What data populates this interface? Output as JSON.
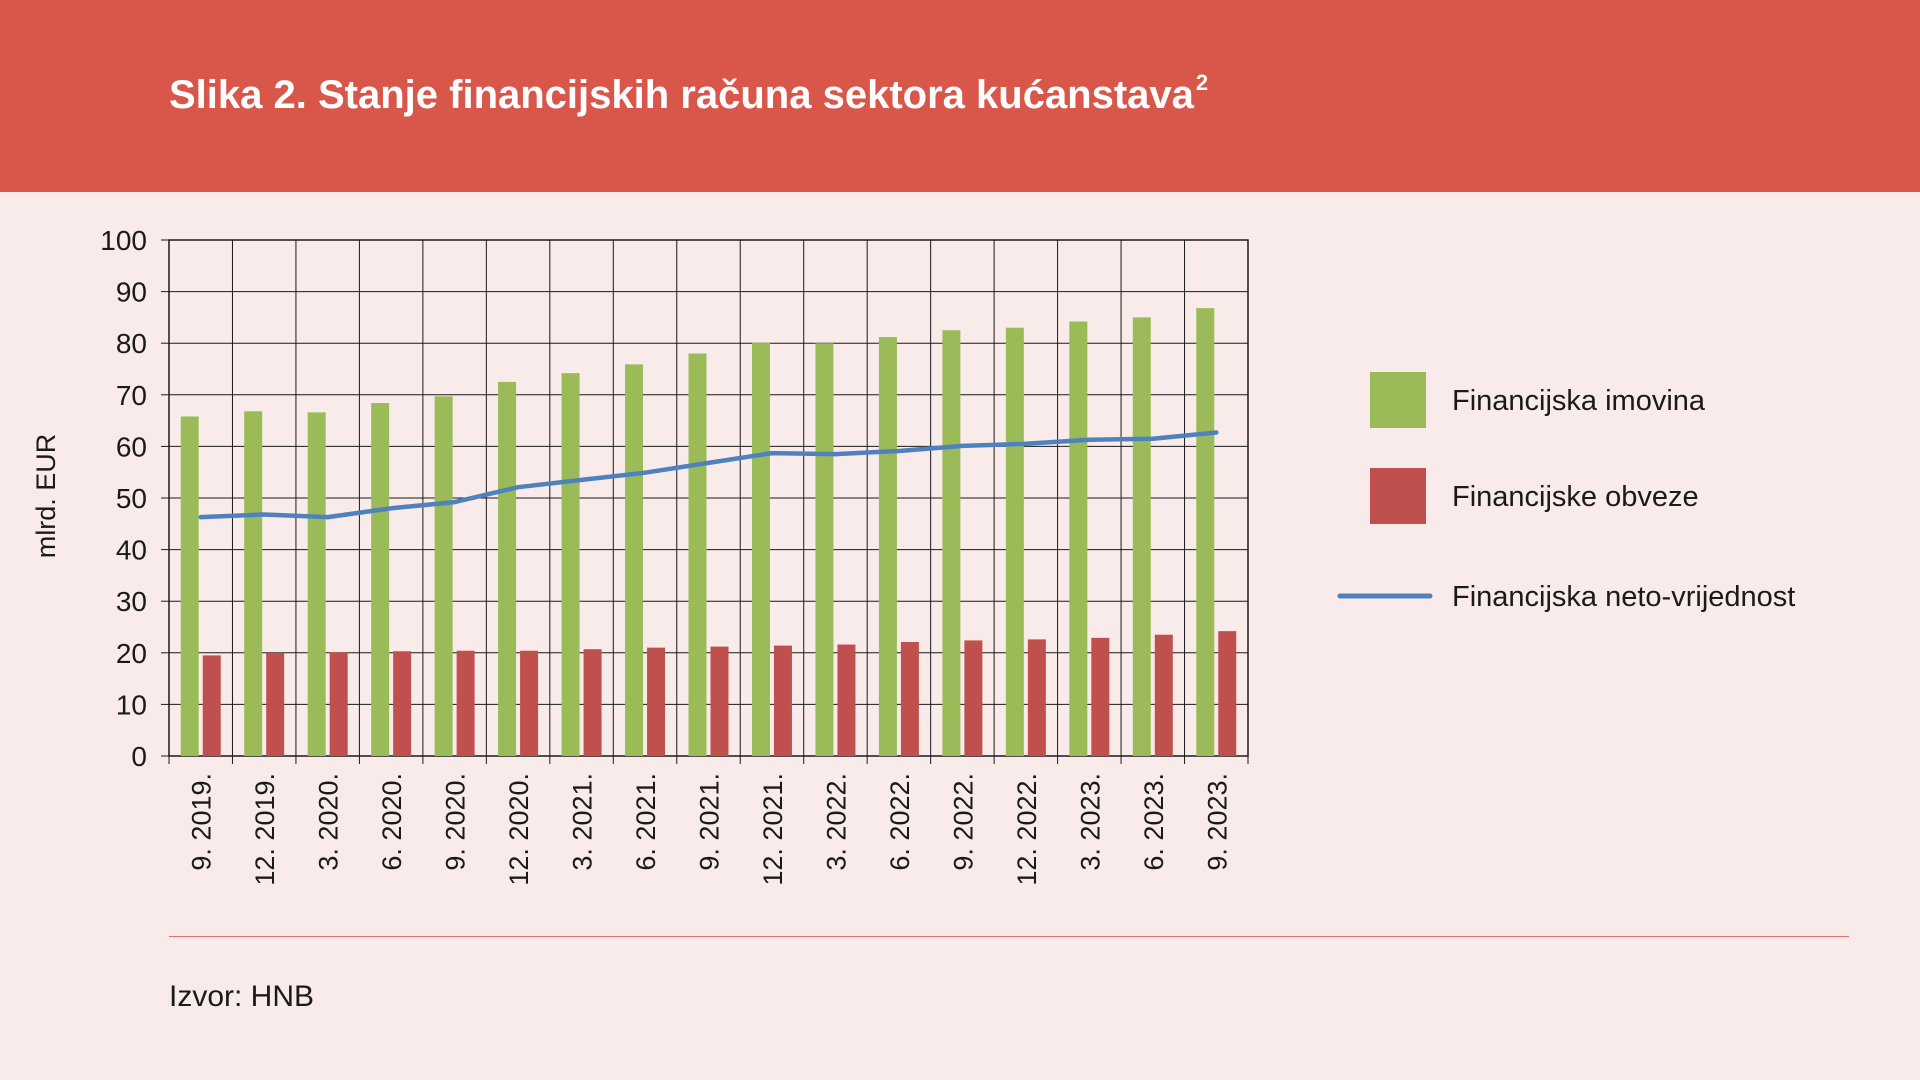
{
  "header": {
    "title": "Slika 2. Stanje financijskih računa sektora kućanstava",
    "title_sup": "2"
  },
  "footer": {
    "source": "Izvor: HNB"
  },
  "colors": {
    "header_bg": "#d8564a",
    "background": "#f9ebe9",
    "assets": "#9bbb59",
    "liabilities": "#c0504d",
    "net_worth": "#4f81bd"
  },
  "chart_data": {
    "type": "bar",
    "categories": [
      "9. 2019.",
      "12. 2019.",
      "3. 2020.",
      "6. 2020.",
      "9. 2020.",
      "12. 2020.",
      "3. 2021.",
      "6. 2021.",
      "9. 2021.",
      "12. 2021.",
      "3. 2022.",
      "6. 2022.",
      "9. 2022.",
      "12. 2022.",
      "3. 2023.",
      "6. 2023.",
      "9. 2023."
    ],
    "series": [
      {
        "name": "Financijska imovina",
        "type": "bar",
        "color": "#9bbb59",
        "values": [
          65.8,
          66.8,
          66.6,
          68.4,
          69.7,
          72.5,
          74.2,
          75.9,
          78.0,
          80.1,
          80.0,
          81.2,
          82.5,
          83.0,
          84.2,
          85.0,
          86.8
        ]
      },
      {
        "name": "Financijske obveze",
        "type": "bar",
        "color": "#c0504d",
        "values": [
          19.5,
          20.0,
          20.1,
          20.3,
          20.4,
          20.4,
          20.7,
          21.0,
          21.2,
          21.4,
          21.6,
          22.1,
          22.4,
          22.6,
          22.9,
          23.5,
          24.2
        ]
      },
      {
        "name": "Financijska neto-vrijednost",
        "type": "line",
        "color": "#4f81bd",
        "values": [
          46.3,
          46.8,
          46.3,
          48.0,
          49.2,
          52.1,
          53.5,
          54.9,
          56.8,
          58.7,
          58.5,
          59.1,
          60.1,
          60.5,
          61.3,
          61.5,
          62.7
        ]
      }
    ],
    "ylabel": "mlrd. EUR",
    "xlabel": "",
    "ylim": [
      0,
      100
    ],
    "yticks": [
      0,
      10,
      20,
      30,
      40,
      50,
      60,
      70,
      80,
      90,
      100
    ],
    "grid": true,
    "legend_position": "right"
  }
}
